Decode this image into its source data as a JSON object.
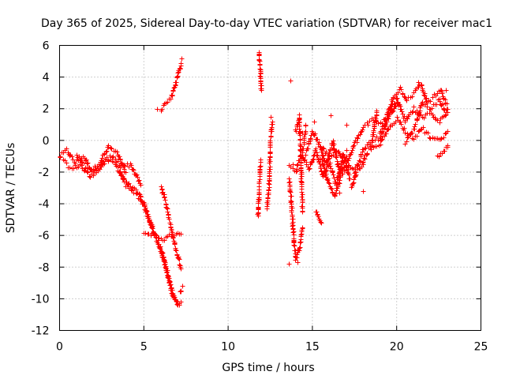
{
  "chart_data": {
    "type": "scatter",
    "title": "Day 365 of 2025, Sidereal Day-to-day VTEC variation (SDTVAR) for receiver mac1",
    "xlabel": "GPS time / hours",
    "ylabel": "SDTVAR / TECUs",
    "xlim": [
      0,
      25
    ],
    "ylim": [
      -12,
      6
    ],
    "xticks": [
      0,
      5,
      10,
      15,
      20,
      25
    ],
    "yticks": [
      -12,
      -10,
      -8,
      -6,
      -4,
      -2,
      0,
      2,
      4,
      6
    ],
    "grid": true,
    "marker": "+",
    "color": "#ff0000",
    "tracks": [
      {
        "x": [
          0.0,
          0.4,
          0.9,
          1.4,
          1.9,
          2.4,
          2.9,
          3.4,
          3.9
        ],
        "y": [
          -1.0,
          -0.6,
          -1.4,
          -1.0,
          -1.9,
          -1.3,
          -0.4,
          -0.8,
          -2.0
        ]
      },
      {
        "x": [
          0.2,
          0.7,
          1.2,
          1.8,
          2.3,
          2.8,
          3.3,
          3.8
        ],
        "y": [
          -1.3,
          -1.8,
          -1.5,
          -2.3,
          -1.8,
          -1.2,
          -1.5,
          -2.4
        ]
      },
      {
        "x": [
          1.0,
          1.5,
          2.0,
          2.6,
          3.1,
          3.6,
          4.2,
          4.8
        ],
        "y": [
          -0.9,
          -1.6,
          -2.1,
          -1.4,
          -1.0,
          -1.6,
          -1.5,
          -2.8
        ]
      },
      {
        "x": [
          3.5,
          3.9,
          4.3,
          4.7,
          5.0,
          5.3,
          5.7,
          6.1,
          6.4,
          6.7,
          7.0,
          7.2
        ],
        "y": [
          -2.0,
          -2.6,
          -3.0,
          -3.3,
          -4.2,
          -5.0,
          -6.1,
          -7.2,
          -8.6,
          -9.8,
          -10.3,
          -10.2
        ]
      },
      {
        "x": [
          3.7,
          4.1,
          4.5,
          4.9,
          5.2,
          5.5,
          5.9,
          6.2,
          6.5,
          6.8,
          7.1
        ],
        "y": [
          -2.3,
          -2.9,
          -3.3,
          -3.8,
          -4.6,
          -5.6,
          -6.6,
          -7.7,
          -8.9,
          -10.0,
          -10.4
        ]
      },
      {
        "x": [
          5.0,
          5.4,
          5.8,
          6.2,
          6.6,
          7.0,
          7.2
        ],
        "y": [
          -5.8,
          -5.9,
          -6.1,
          -6.2,
          -6.0,
          -5.8,
          -5.9
        ]
      },
      {
        "x": [
          6.0,
          6.3,
          6.6,
          6.9,
          7.2
        ],
        "y": [
          -2.9,
          -4.0,
          -5.5,
          -6.9,
          -8.1
        ]
      },
      {
        "x": [
          6.0,
          6.3,
          6.6,
          6.9,
          7.2
        ],
        "y": [
          2.0,
          2.4,
          2.7,
          3.8,
          4.9
        ]
      },
      {
        "x": [
          7.1,
          7.3
        ],
        "y": [
          -9.6,
          -9.2
        ]
      },
      {
        "x": [
          11.75,
          11.8,
          11.85,
          11.9
        ],
        "y": [
          -4.8,
          -3.8,
          -2.5,
          -1.2
        ]
      },
      {
        "x": [
          11.8,
          11.85,
          11.9,
          11.95
        ],
        "y": [
          5.6,
          5.0,
          4.3,
          3.2
        ]
      },
      {
        "x": [
          12.3,
          12.4,
          12.5,
          12.6
        ],
        "y": [
          -4.2,
          -3.0,
          0.0,
          1.2
        ]
      },
      {
        "x": [
          13.6,
          13.7,
          13.8,
          13.9,
          14.0,
          14.2,
          14.4
        ],
        "y": [
          -2.5,
          -3.5,
          -5.0,
          -6.5,
          -7.5,
          -6.8,
          -5.5
        ]
      },
      {
        "x": [
          13.6,
          13.8,
          14.0,
          14.2,
          14.4,
          14.6
        ],
        "y": [
          -1.5,
          -1.6,
          -2.0,
          -1.2,
          -0.8,
          1.0
        ]
      },
      {
        "x": [
          13.7
        ],
        "y": [
          3.8
        ]
      },
      {
        "x": [
          14.0,
          14.2,
          14.4
        ],
        "y": [
          0.6,
          1.5,
          -4.5
        ]
      },
      {
        "x": [
          14.4,
          14.8,
          15.2,
          15.6,
          16.0,
          16.4,
          16.8,
          17.2
        ],
        "y": [
          -1.0,
          -1.8,
          -0.6,
          -2.2,
          -1.4,
          -2.8,
          -0.9,
          -2.4
        ]
      },
      {
        "x": [
          14.6,
          15.0,
          15.4,
          15.8,
          16.2,
          16.6,
          17.0
        ],
        "y": [
          -0.8,
          0.6,
          -0.2,
          -1.5,
          0.0,
          -2.0,
          -1.0
        ]
      },
      {
        "x": [
          15.2,
          15.5
        ],
        "y": [
          -4.4,
          -5.2
        ]
      },
      {
        "x": [
          15.5,
          15.9,
          16.3,
          16.7,
          17.1
        ],
        "y": [
          -1.2,
          -2.6,
          -3.5,
          -2.2,
          -1.8
        ]
      },
      {
        "x": [
          15.5,
          16.0,
          16.5,
          17.0,
          17.5,
          18.0,
          18.5,
          19.0,
          19.5,
          20.0
        ],
        "y": [
          -0.4,
          -1.0,
          -0.6,
          -1.6,
          -0.2,
          0.8,
          1.3,
          1.1,
          1.5,
          2.4
        ]
      },
      {
        "x": [
          16.5,
          17.0,
          17.5,
          18.0,
          18.5,
          19.0,
          19.5
        ],
        "y": [
          -2.2,
          -1.4,
          -2.0,
          -0.6,
          0.0,
          0.2,
          1.4
        ]
      },
      {
        "x": [
          17.3,
          17.6,
          17.9,
          18.2,
          18.5,
          18.8
        ],
        "y": [
          -3.0,
          -2.0,
          -1.6,
          -0.8,
          -0.2,
          1.8
        ]
      },
      {
        "x": [
          18.5,
          19.0,
          19.5,
          20.0,
          20.5,
          21.0,
          21.5,
          22.0,
          22.5,
          23.0
        ],
        "y": [
          -0.6,
          -0.2,
          0.8,
          1.4,
          0.6,
          0.2,
          0.8,
          0.2,
          0.0,
          0.6
        ]
      },
      {
        "x": [
          19.0,
          19.5,
          20.0,
          20.5,
          21.0,
          21.5,
          22.0,
          22.5,
          23.0
        ],
        "y": [
          0.4,
          1.8,
          2.6,
          1.2,
          2.0,
          1.4,
          1.8,
          1.2,
          1.8
        ]
      },
      {
        "x": [
          19.4,
          19.8,
          20.2,
          20.6,
          21.0,
          21.4,
          21.8,
          22.2,
          22.6,
          23.0
        ],
        "y": [
          1.6,
          2.8,
          3.3,
          2.6,
          3.0,
          3.6,
          2.4,
          2.8,
          3.2,
          2.0
        ]
      },
      {
        "x": [
          20.5,
          21.0,
          21.5,
          22.0,
          22.5,
          22.9
        ],
        "y": [
          -0.1,
          0.7,
          2.4,
          2.0,
          2.6,
          1.8
        ]
      },
      {
        "x": [
          22.4,
          22.7,
          23.0
        ],
        "y": [
          -1.0,
          -0.8,
          -0.4
        ]
      }
    ],
    "points": [
      {
        "x": 0.0,
        "y": -1.0
      },
      {
        "x": 3.9,
        "y": -2.9
      },
      {
        "x": 2.9,
        "y": -0.3
      },
      {
        "x": 5.8,
        "y": 2.0
      },
      {
        "x": 7.25,
        "y": 5.2
      },
      {
        "x": 7.0,
        "y": -10.4
      },
      {
        "x": 11.8,
        "y": 5.5
      },
      {
        "x": 11.9,
        "y": 3.3
      },
      {
        "x": 12.5,
        "y": 1.5
      },
      {
        "x": 13.6,
        "y": -7.8
      },
      {
        "x": 14.1,
        "y": -7.7
      },
      {
        "x": 14.4,
        "y": 0.5
      },
      {
        "x": 15.1,
        "y": 1.2
      },
      {
        "x": 16.1,
        "y": 1.6
      },
      {
        "x": 16.6,
        "y": -3.3
      },
      {
        "x": 17.0,
        "y": 1.0
      },
      {
        "x": 18.0,
        "y": -3.2
      },
      {
        "x": 17.0,
        "y": -0.6
      },
      {
        "x": 18.8,
        "y": 1.9
      },
      {
        "x": 21.3,
        "y": 3.7
      },
      {
        "x": 22.9,
        "y": 3.2
      },
      {
        "x": 23.0,
        "y": -0.3
      },
      {
        "x": 22.5,
        "y": -1.0
      }
    ]
  }
}
